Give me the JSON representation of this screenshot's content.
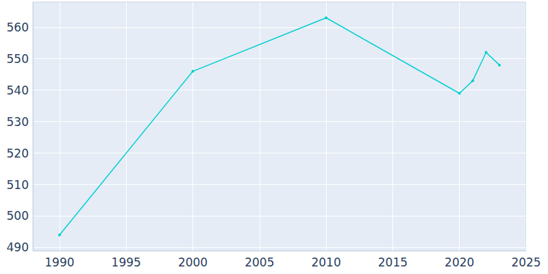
{
  "chart_data": {
    "type": "line",
    "x": [
      1990,
      2000,
      2010,
      2020,
      2021,
      2022,
      2023
    ],
    "values": [
      494,
      546,
      563,
      539,
      543,
      552,
      548
    ],
    "color": "#00ced1",
    "marker": "circle",
    "xlim": [
      1988,
      2025
    ],
    "xticks": [
      1990,
      1995,
      2000,
      2005,
      2010,
      2015,
      2020,
      2025
    ],
    "ylim": [
      489,
      568
    ],
    "yticks": [
      490,
      500,
      510,
      520,
      530,
      540,
      550,
      560
    ],
    "grid": true
  }
}
